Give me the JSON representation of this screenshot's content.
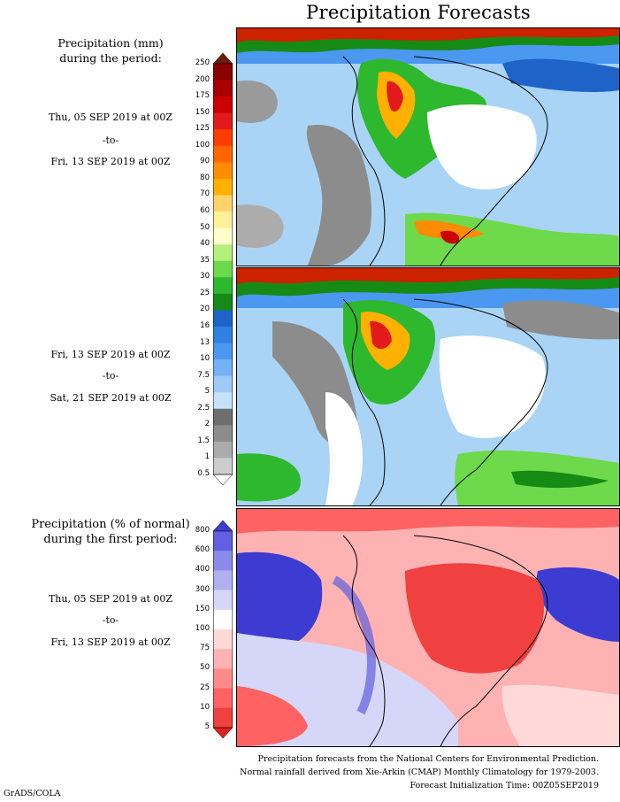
{
  "title": "Precipitation Forecasts",
  "panel1": {
    "label_line1": "Precipitation (mm)",
    "label_line2": "during the period:",
    "start": "Thu, 05 SEP 2019 at 00Z",
    "sep": "-to-",
    "end": "Fri, 13 SEP 2019 at 00Z"
  },
  "panel2": {
    "start": "Fri, 13 SEP 2019 at 00Z",
    "sep": "-to-",
    "end": "Sat, 21 SEP 2019 at 00Z"
  },
  "panel3": {
    "label_line1": "Precipitation (% of normal)",
    "label_line2": "during the first period:",
    "start": "Thu, 05 SEP 2019 at 00Z",
    "sep": "-to-",
    "end": "Fri, 13 SEP 2019 at 00Z"
  },
  "mm_scale": {
    "ticks": [
      "250",
      "200",
      "175",
      "150",
      "125",
      "100",
      "90",
      "80",
      "70",
      "60",
      "50",
      "40",
      "35",
      "30",
      "25",
      "20",
      "16",
      "13",
      "10",
      "7.5",
      "5",
      "2.5",
      "2",
      "1.5",
      "1",
      "0.5"
    ],
    "colors": [
      "#6e1e0a",
      "#8b0000",
      "#aa0000",
      "#cc0000",
      "#e31a1c",
      "#ff3c00",
      "#ff6600",
      "#ff8c00",
      "#ffb000",
      "#ffd36b",
      "#fff09a",
      "#ffffcc",
      "#b5f07a",
      "#6ed94a",
      "#2eb82e",
      "#158a15",
      "#1e64c8",
      "#2f80e0",
      "#4b98f0",
      "#73b3f5",
      "#9dcaf8",
      "#c6e2fb",
      "#6e6e6e",
      "#8c8c8c",
      "#acacac",
      "#cdcdcd",
      "#ffffff"
    ]
  },
  "pct_scale": {
    "ticks": [
      "800",
      "600",
      "400",
      "300",
      "150",
      "100",
      "75",
      "50",
      "25",
      "10",
      "5"
    ],
    "colors": [
      "#3c3cd2",
      "#6060e0",
      "#8a8ae8",
      "#b0b0f0",
      "#d6d6f8",
      "#ffffff",
      "#ffd8d8",
      "#ffb2b2",
      "#ff8a8a",
      "#ff6262",
      "#f04040",
      "#e02020"
    ]
  },
  "footer": {
    "line1": "Precipitation forecasts from the National Centers for Environmental Prediction.",
    "line2": "Normal rainfall derived from Xie-Arkin (CMAP) Monthly Climatology for 1979-2003.",
    "line3": "Forecast Initialization Time: 00Z05SEP2019"
  },
  "credit": "GrADS/COLA"
}
